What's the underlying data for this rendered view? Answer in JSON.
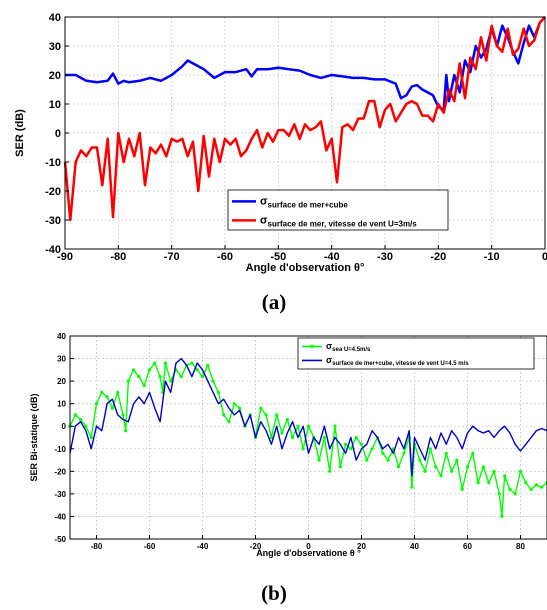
{
  "captions": {
    "a": "(a)",
    "b": "(b)"
  },
  "chart_data": [
    {
      "type": "line",
      "xlabel": "Angle d'observation  θ°",
      "ylabel": "SER (dB)",
      "xlim": [
        -90,
        0
      ],
      "ylim": [
        -40,
        40
      ],
      "xticks": [
        -90,
        -80,
        -70,
        -60,
        -50,
        -40,
        -30,
        -20,
        -10,
        0
      ],
      "yticks": [
        -40,
        -30,
        -20,
        -10,
        0,
        10,
        20,
        30,
        40
      ],
      "grid": true,
      "legend_position": "lower-right",
      "series": [
        {
          "name_symbol": "σ",
          "name_sub": "surface de mer+cube",
          "color": "#0000ff",
          "x": [
            -90,
            -88,
            -86,
            -84,
            -82,
            -81,
            -80,
            -79,
            -78,
            -76,
            -74,
            -72,
            -70,
            -68,
            -67,
            -66,
            -64,
            -62,
            -60,
            -58,
            -56,
            -55,
            -54,
            -52,
            -50,
            -48,
            -46,
            -44,
            -42,
            -40,
            -38,
            -36,
            -34,
            -32,
            -30,
            -28,
            -27,
            -26,
            -25,
            -24,
            -23,
            -22,
            -21,
            -20,
            -19,
            -18.5,
            -18,
            -17,
            -16,
            -15,
            -14,
            -13,
            -12,
            -11,
            -10,
            -9,
            -8,
            -7,
            -6,
            -5,
            -4,
            -3,
            -2,
            -1,
            0
          ],
          "y": [
            20,
            20,
            18,
            17.5,
            18,
            20.5,
            17,
            18,
            17.5,
            18,
            19,
            18,
            20,
            23,
            25,
            24,
            22,
            19,
            21,
            21,
            22,
            19.5,
            22,
            22,
            22.5,
            22,
            21.5,
            20,
            19,
            20,
            19.5,
            19,
            19,
            18.5,
            18.5,
            17,
            12,
            13,
            16,
            16.5,
            15,
            14,
            13,
            9,
            8,
            20,
            11,
            20,
            14,
            25,
            21,
            30,
            26,
            29,
            36,
            30,
            37,
            33,
            28,
            24,
            31,
            37,
            33,
            38,
            40
          ]
        },
        {
          "name_symbol": "σ",
          "name_sub": "surface de mer, vitesse de vent U=3m/s",
          "color": "#ff0000",
          "x": [
            -90,
            -89,
            -88,
            -87,
            -86,
            -85,
            -84,
            -83,
            -82,
            -81,
            -80,
            -79,
            -78,
            -77,
            -76,
            -75,
            -74,
            -73,
            -72,
            -71,
            -70,
            -69,
            -68,
            -67,
            -66,
            -65,
            -64,
            -63,
            -62,
            -61,
            -60,
            -59,
            -58,
            -57,
            -56,
            -55,
            -54,
            -53,
            -52,
            -51,
            -50,
            -49,
            -48,
            -47,
            -46,
            -45,
            -44,
            -43,
            -42,
            -41,
            -40,
            -39,
            -38,
            -37,
            -36,
            -35,
            -34,
            -33,
            -32,
            -31,
            -30,
            -29,
            -28,
            -27,
            -26,
            -25,
            -24,
            -23,
            -22,
            -21,
            -20,
            -19,
            -18,
            -17,
            -16,
            -15,
            -14,
            -13,
            -12,
            -11,
            -10,
            -9,
            -8,
            -7,
            -6,
            -5,
            -4,
            -3,
            -2,
            -1,
            0
          ],
          "y": [
            -10,
            -30,
            -10,
            -6,
            -8,
            -5,
            -5,
            -18,
            -2,
            -29,
            0,
            -10,
            -2,
            -8,
            0,
            -18,
            -5,
            -7,
            -4,
            -8,
            -2,
            -3,
            -2,
            -8,
            -3,
            -20,
            -1,
            -15,
            -2,
            -10,
            -2,
            -4,
            -2,
            -8,
            -6,
            -2,
            1,
            -5,
            0,
            -3,
            1,
            1,
            -1,
            3,
            -2,
            3,
            1,
            2,
            4,
            -6,
            -2,
            -17,
            2,
            3,
            1,
            5,
            5,
            11,
            11,
            2,
            8,
            10,
            4,
            7,
            10,
            11,
            10,
            6,
            6,
            4,
            10,
            7,
            15,
            11,
            24,
            12,
            26,
            22,
            33,
            25,
            37,
            30,
            28,
            36,
            27,
            29,
            36,
            30,
            32,
            38,
            40
          ]
        }
      ]
    },
    {
      "type": "line",
      "xlabel": "Angle d'observatione  θ °",
      "ylabel": "SER Bi-statique (dB)",
      "xlim": [
        -90,
        90
      ],
      "ylim": [
        -50,
        40
      ],
      "xticks": [
        -80,
        -60,
        -40,
        -20,
        0,
        20,
        40,
        60,
        80
      ],
      "yticks": [
        -50,
        -40,
        -30,
        -20,
        -10,
        0,
        10,
        20,
        30,
        40
      ],
      "grid": true,
      "legend_position": "top-right",
      "series": [
        {
          "name_symbol": "σ",
          "name_sub": "sea U=4.5m/s",
          "color": "#00ff00",
          "marker": "dot",
          "x": [
            -90,
            -88,
            -86,
            -84,
            -82,
            -80,
            -78,
            -76,
            -74,
            -72,
            -70,
            -69,
            -68,
            -66,
            -64,
            -62,
            -60,
            -58,
            -56,
            -55,
            -54,
            -52,
            -50,
            -48,
            -46,
            -44,
            -42,
            -40,
            -38,
            -36,
            -34,
            -32,
            -30,
            -28,
            -26,
            -24,
            -22,
            -20,
            -18,
            -16,
            -14,
            -12,
            -10,
            -8,
            -6,
            -4,
            -2,
            0,
            2,
            4,
            6,
            8,
            10,
            12,
            14,
            16,
            18,
            20,
            22,
            24,
            26,
            28,
            30,
            32,
            34,
            36,
            38,
            39,
            40,
            42,
            44,
            46,
            48,
            50,
            52,
            54,
            56,
            58,
            60,
            62,
            64,
            66,
            68,
            70,
            72,
            73,
            74,
            76,
            78,
            80,
            82,
            84,
            86,
            88,
            90
          ],
          "y": [
            0,
            5,
            3,
            0,
            -5,
            10,
            15,
            13,
            8,
            15,
            5,
            -2,
            20,
            25,
            22,
            18,
            25,
            28,
            22,
            15,
            28,
            20,
            25,
            22,
            27,
            28,
            25,
            22,
            27,
            20,
            15,
            5,
            2,
            10,
            8,
            0,
            5,
            -5,
            8,
            5,
            -5,
            5,
            -3,
            3,
            -5,
            0,
            -10,
            0,
            -5,
            -15,
            -5,
            -20,
            0,
            -18,
            -8,
            -10,
            -5,
            -8,
            -15,
            -10,
            -5,
            -12,
            -15,
            -10,
            -18,
            -12,
            -5,
            -27,
            -8,
            -15,
            -20,
            -10,
            -18,
            -22,
            -12,
            -20,
            -15,
            -28,
            -18,
            -12,
            -25,
            -18,
            -25,
            -20,
            -30,
            -40,
            -22,
            -28,
            -30,
            -20,
            -25,
            -28,
            -26,
            -27,
            -25
          ]
        },
        {
          "name_symbol": "σ",
          "name_sub": "surface de mer+cube, vitesse de vent U=4.5 m/s",
          "color": "#0000cc",
          "x": [
            -90,
            -88,
            -86,
            -84,
            -82,
            -80,
            -78,
            -76,
            -74,
            -72,
            -70,
            -68,
            -66,
            -64,
            -62,
            -60,
            -58,
            -56,
            -54,
            -52,
            -50,
            -48,
            -46,
            -44,
            -42,
            -40,
            -38,
            -36,
            -34,
            -32,
            -30,
            -28,
            -26,
            -24,
            -22,
            -20,
            -18,
            -16,
            -14,
            -12,
            -10,
            -8,
            -6,
            -4,
            -2,
            0,
            2,
            4,
            6,
            8,
            10,
            12,
            14,
            16,
            18,
            20,
            22,
            24,
            26,
            28,
            30,
            32,
            34,
            36,
            38,
            39,
            40,
            42,
            44,
            46,
            48,
            50,
            52,
            54,
            56,
            58,
            60,
            62,
            64,
            66,
            68,
            70,
            72,
            74,
            76,
            78,
            80,
            82,
            84,
            86,
            88,
            90
          ],
          "y": [
            -12,
            0,
            2,
            -2,
            -10,
            0,
            -2,
            10,
            12,
            5,
            3,
            2,
            10,
            13,
            10,
            15,
            8,
            2,
            20,
            15,
            28,
            30,
            27,
            22,
            28,
            25,
            20,
            15,
            10,
            12,
            8,
            5,
            7,
            0,
            5,
            -5,
            2,
            -2,
            -8,
            0,
            -10,
            -3,
            2,
            -5,
            0,
            -12,
            -5,
            -8,
            0,
            -10,
            -5,
            -8,
            -12,
            -5,
            -15,
            -10,
            -8,
            -2,
            -5,
            -10,
            -8,
            -12,
            -5,
            -10,
            -2,
            -22,
            -5,
            -10,
            -15,
            -5,
            -10,
            -3,
            -8,
            -2,
            -5,
            -10,
            -3,
            0,
            -2,
            -3,
            -2,
            -5,
            -2,
            0,
            -3,
            -8,
            -11,
            -8,
            -5,
            -2,
            -1,
            -2
          ]
        }
      ]
    }
  ]
}
